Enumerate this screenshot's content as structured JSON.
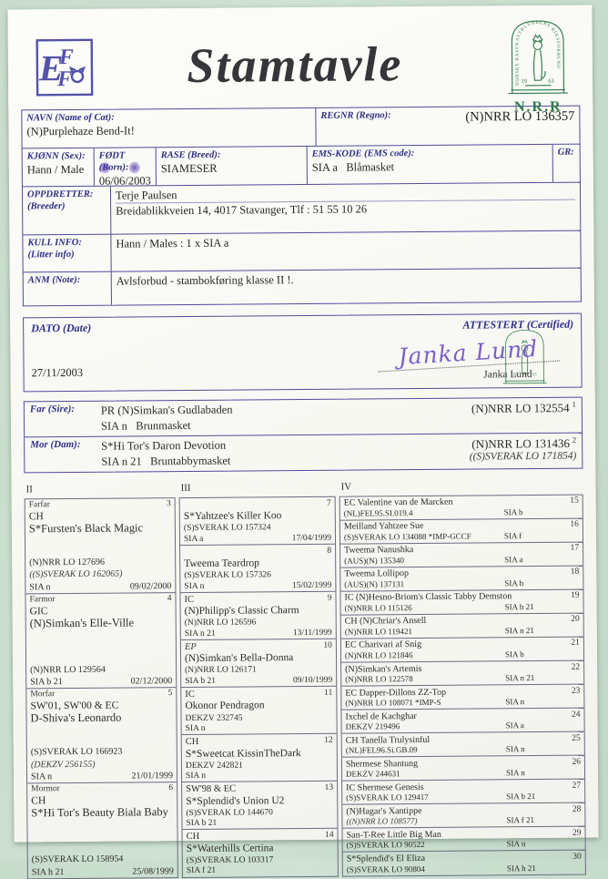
{
  "page": {
    "title": "Stamtavle",
    "nrr_abbrev": "N.R.R",
    "emblem_text": "NORSKE RASEKATTKLUBBERS RIKSFORBUND",
    "emblem_year_left": "19",
    "emblem_year_right": "63"
  },
  "info": {
    "navn_label": "NAVN  (Name of Cat):",
    "navn_value": "(N)Purplehaze Bend-It!",
    "regnr_label": "REGNR  (Regno):",
    "regnr_value": "(N)NRR LO 136357",
    "kjonn_label": "KJØNN  (Sex):",
    "kjonn_value": "Hann / Male",
    "fodt_label": "FØDT  (Born):",
    "fodt_value": "06/06/2003",
    "rase_label": "RASE  (Breed):",
    "rase_value": "SIAMESER",
    "ems_label": "EMS-KODE  (EMS code):",
    "ems_value": "SIA a   Blåmasket",
    "gr_label": "GR:",
    "oppdretter_label": "OPPDRETTER:",
    "oppdretter_sub": "(Breeder)",
    "oppdretter_line1": "Terje Paulsen",
    "oppdretter_line2": "Breidablikkveien 14, 4017 Stavanger, Tlf : 51 55 10 26",
    "kull_label": "KULL INFO:",
    "kull_sub": "(Litter info)",
    "kull_value": "Hann / Males : 1 x SIA a",
    "anm_label": "ANM  (Note):",
    "anm_value": "Avlsforbud - stambokføring klasse II !."
  },
  "certify": {
    "dato_label": "DATO  (Date)",
    "dato_value": "27/11/2003",
    "attestert_label": "ATTESTERT  (Certified)",
    "signature": "Janka Lund",
    "signer_name": "Janka Lund"
  },
  "parents": {
    "far_label": "Far  (Sire):",
    "far_name": "PR (N)Simkan's Gudlabaden",
    "far_ems": "SIA n   Brunmasket",
    "far_reg": "(N)NRR LO 132554",
    "far_index": "1",
    "mor_label": "Mor  (Dam):",
    "mor_name": "S*Hi Tor's Daron Devotion",
    "mor_ems": "SIA n 21   Bruntabbymasket",
    "mor_reg": "(N)NRR LO 131436",
    "mor_reg2": "((S)SVERAK LO 171854)",
    "mor_index": "2"
  },
  "pedigree": {
    "headers": [
      "II",
      "III",
      "IV"
    ],
    "gen2": [
      {
        "relation": "Farfar",
        "num": "3",
        "prefix": "CH",
        "name": "S*Fursten's Black Magic",
        "reg": "(N)NRR LO 127696",
        "reg2": "((S)SVERAK LO 162065)",
        "ems": "SIA n",
        "date": "09/02/2000"
      },
      {
        "relation": "Farmor",
        "num": "4",
        "prefix": "GIC",
        "name": "(N)Simkan's Elle-Ville",
        "reg": "(N)NRR LO 129564",
        "reg2": "",
        "ems": "SIA b 21",
        "date": "02/12/2000"
      },
      {
        "relation": "Morfar",
        "num": "5",
        "prefix": "SW'01, SW'00 & EC",
        "name": "D-Shiva's Leonardo",
        "reg": "(S)SVERAK LO 166923",
        "reg2": "(DEKZV 256155)",
        "ems": "SIA n",
        "date": "21/01/1999"
      },
      {
        "relation": "Mormor",
        "num": "6",
        "prefix": "CH",
        "name": "S*Hi Tor's Beauty Biala Baby",
        "reg": "(S)SVERAK LO 158954",
        "reg2": "",
        "ems": "SIA h 21",
        "date": "25/08/1999"
      }
    ],
    "gen3": [
      {
        "num": "7",
        "prefix": "",
        "name": "S*Yahtzee's Killer Koo",
        "reg": "(S)SVERAK LO 157324",
        "ems": "SIA a",
        "date": "17/04/1999"
      },
      {
        "num": "8",
        "prefix": "",
        "name": "Tweema Teardrop",
        "reg": "(S)SVERAK LO 157326",
        "ems": "SIA n",
        "date": "15/02/1999"
      },
      {
        "num": "9",
        "prefix": "IC",
        "name": "(N)Philipp's Classic Charm",
        "reg": "(N)NRR LO 126596",
        "ems": "SIA n 21",
        "date": "13/11/1999"
      },
      {
        "num": "10",
        "prefix": "EP",
        "prefix_italic": true,
        "name": "(N)Simkan's Bella-Donna",
        "reg": "(N)NRR LO 126171",
        "ems": "SIA b 21",
        "date": "09/10/1999"
      },
      {
        "num": "11",
        "prefix": "IC",
        "name": "Okonor Pendragon",
        "reg": "DEKZV 232745",
        "ems": "SIA n",
        "date": ""
      },
      {
        "num": "12",
        "prefix": "CH",
        "name": "S*Sweetcat KissinTheDark",
        "reg": "DEKZV 242821",
        "ems": "SIA n",
        "date": ""
      },
      {
        "num": "13",
        "prefix": "SW'98 & EC",
        "name": "S*Splendid's Union U2",
        "reg": "(S)SVERAK LO 144670",
        "ems": "SIA b 21",
        "date": ""
      },
      {
        "num": "14",
        "prefix": "CH",
        "name": "S*Waterhills Certina",
        "reg": "(S)SVERAK LO 103317",
        "ems": "SIA f 21",
        "date": ""
      }
    ],
    "gen4": [
      {
        "num": "15",
        "name": "EC Valentine van de Marcken",
        "reg": "(NL)FEL95.SI.019.4",
        "ems": "SIA b"
      },
      {
        "num": "16",
        "name": "Meilland Yahtzee Sue",
        "reg": "(S)SVERAK LO 134088 *IMP-GCCF",
        "ems": "SIA f"
      },
      {
        "num": "17",
        "name": "Tweema Nanushka",
        "reg": "(AUS)(N) 135340",
        "ems": "SIA a"
      },
      {
        "num": "18",
        "name": "Tweema Lollipop",
        "reg": "(AUS)(N) 137131",
        "ems": "SIA b"
      },
      {
        "num": "19",
        "name": "IC (N)Hesno-Briom's Classic Tabby Demston",
        "reg": "(N)NRR LO 115126",
        "ems": "SIA b 21"
      },
      {
        "num": "20",
        "name": "CH (N)Chriar's Ansell",
        "reg": "(N)NRR LO 119421",
        "ems": "SIA n 21"
      },
      {
        "num": "21",
        "name": "EC Charivari af Snig",
        "reg": "(N)NRR LO 121846",
        "ems": "SIA b"
      },
      {
        "num": "22",
        "name": "(N)Simkan's Artemis",
        "reg": "(N)NRR LO 122578",
        "ems": "SIA n 21"
      },
      {
        "num": "23",
        "name": "EC Dapper-Dillons ZZ-Top",
        "reg": "(N)NRR LO 108071 *IMP-S",
        "ems": "SIA n"
      },
      {
        "num": "24",
        "name": "Ixchel de Kachghar",
        "reg": "DEKZV 219496",
        "ems": "SIA a"
      },
      {
        "num": "25",
        "name": "CH Tanella Trulysinful",
        "reg": "(NL)FEL96.Si.GB.09",
        "ems": "SIA n"
      },
      {
        "num": "26",
        "name": "Shermese Shantung",
        "reg": "DEKZV 244631",
        "ems": "SIA n"
      },
      {
        "num": "27",
        "name": "IC Shermese Genesis",
        "reg": "(S)SVERAK LO 129417",
        "ems": "SIA b 21"
      },
      {
        "num": "28",
        "name": "(N)Hagar's Xantippe",
        "reg": "((N)NRR LO 108577)",
        "reg_italic": true,
        "ems": "SIA f 21"
      },
      {
        "num": "29",
        "name": "San-T-Ree Little Big Man",
        "reg": "(S)SVERAK LO 90522",
        "ems": "SIA n"
      },
      {
        "num": "30",
        "name": "S*Splendid's El Eliza",
        "reg": "(S)SVERAK LO 90804",
        "ems": "SIA h 21"
      }
    ]
  }
}
